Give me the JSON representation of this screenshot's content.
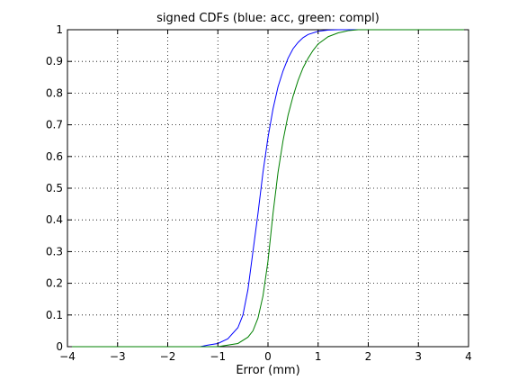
{
  "chart_data": {
    "type": "line",
    "title": "signed CDFs (blue: acc, green: compl)",
    "xlabel": "Error (mm)",
    "ylabel": "",
    "xlim": [
      -4,
      4
    ],
    "ylim": [
      0,
      1
    ],
    "grid": true,
    "xticks": [
      -4,
      -3,
      -2,
      -1,
      0,
      1,
      2,
      3,
      4
    ],
    "yticks": [
      0,
      0.1,
      0.2,
      0.3,
      0.4,
      0.5,
      0.6,
      0.7,
      0.8,
      0.9,
      1
    ],
    "series": [
      {
        "color": "#0000ff",
        "x": [
          -4,
          -1.35,
          -1.2,
          -1.0,
          -0.8,
          -0.6,
          -0.5,
          -0.4,
          -0.3,
          -0.2,
          -0.1,
          0.0,
          0.1,
          0.2,
          0.3,
          0.4,
          0.5,
          0.6,
          0.7,
          0.8,
          1.0,
          1.2,
          1.4,
          4
        ],
        "y": [
          0,
          0,
          0.005,
          0.01,
          0.025,
          0.06,
          0.1,
          0.18,
          0.3,
          0.42,
          0.55,
          0.66,
          0.75,
          0.82,
          0.87,
          0.91,
          0.94,
          0.96,
          0.975,
          0.985,
          0.995,
          0.999,
          1,
          1
        ]
      },
      {
        "color": "#008000",
        "x": [
          -4,
          -1.0,
          -0.8,
          -0.6,
          -0.4,
          -0.3,
          -0.2,
          -0.1,
          0.0,
          0.1,
          0.2,
          0.3,
          0.4,
          0.5,
          0.6,
          0.7,
          0.8,
          0.9,
          1.0,
          1.2,
          1.4,
          1.6,
          1.8,
          4
        ],
        "y": [
          0,
          0,
          0.005,
          0.01,
          0.03,
          0.05,
          0.09,
          0.16,
          0.27,
          0.42,
          0.55,
          0.65,
          0.73,
          0.79,
          0.84,
          0.88,
          0.91,
          0.935,
          0.955,
          0.978,
          0.99,
          0.997,
          1,
          1
        ]
      }
    ]
  }
}
